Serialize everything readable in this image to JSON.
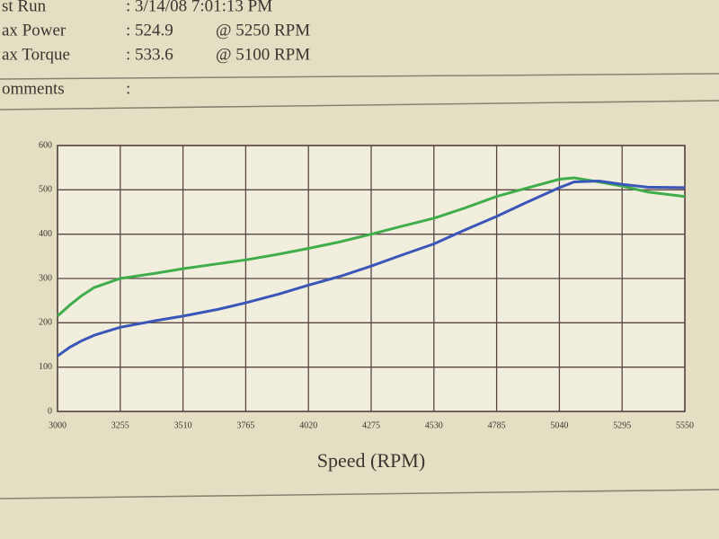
{
  "header": {
    "rows": [
      {
        "label": "st Run",
        "value": ": 3/14/08 7:01:13 PM"
      },
      {
        "label": "ax Power",
        "value": ": 524.9",
        "extra": "@ 5250 RPM"
      },
      {
        "label": "ax Torque",
        "value": ": 533.6",
        "extra": "@ 5100 RPM"
      },
      {
        "label": "omments",
        "value": ":"
      }
    ]
  },
  "chart_data": {
    "type": "line",
    "x_label": "Speed (RPM)",
    "x": [
      3000,
      3050,
      3100,
      3150,
      3255,
      3400,
      3510,
      3650,
      3765,
      3900,
      4020,
      4150,
      4275,
      4400,
      4530,
      4650,
      4785,
      4900,
      5040,
      5100,
      5200,
      5300,
      5400,
      5550
    ],
    "series": [
      {
        "color": "#3fae4a",
        "values": [
          215,
          240,
          262,
          280,
          300,
          312,
          322,
          333,
          342,
          355,
          368,
          383,
          400,
          418,
          436,
          458,
          485,
          503,
          524,
          527,
          518,
          508,
          495,
          485
        ]
      },
      {
        "color": "#3a56b8",
        "values": [
          125,
          145,
          160,
          172,
          190,
          205,
          215,
          230,
          245,
          265,
          285,
          305,
          328,
          353,
          378,
          408,
          440,
          470,
          505,
          518,
          520,
          512,
          506,
          505
        ]
      }
    ],
    "xlim": [
      3000,
      5550
    ],
    "xticks": [
      3000,
      3255,
      3510,
      3765,
      4020,
      4275,
      4530,
      4785,
      5040,
      5295,
      5550
    ],
    "ylim": [
      0,
      600
    ],
    "yticks": [
      0,
      100,
      200,
      300,
      400,
      500,
      600
    ],
    "grid": true
  }
}
